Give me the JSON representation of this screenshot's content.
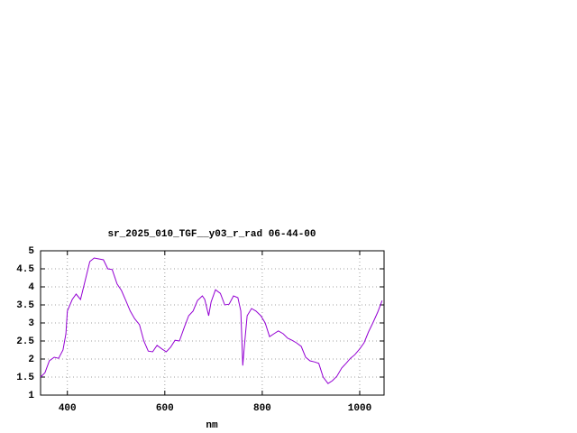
{
  "chart_data": {
    "type": "line",
    "title": "sr_2025_010_TGF__y03_r_rad 06-44-00",
    "x_label": "nm",
    "xlim": [
      345,
      1050
    ],
    "ylim": [
      1,
      5
    ],
    "xticks": [
      400,
      600,
      800,
      1000
    ],
    "yticks": [
      1,
      1.5,
      2,
      2.5,
      3,
      3.5,
      4,
      4.5,
      5
    ],
    "grid": true,
    "series": [
      {
        "color": "#9400d3",
        "x": [
          345,
          354,
          363,
          373,
          382,
          391,
          397,
          400,
          410,
          418,
          427,
          437,
          446,
          455,
          474,
          483,
          492,
          502,
          511,
          520,
          529,
          538,
          548,
          557,
          566,
          575,
          584,
          594,
          603,
          612,
          621,
          630,
          640,
          649,
          658,
          667,
          677,
          682,
          690,
          695,
          704,
          714,
          723,
          732,
          741,
          750,
          756,
          760,
          763,
          769,
          778,
          787,
          797,
          806,
          815,
          824,
          833,
          843,
          852,
          861,
          870,
          880,
          889,
          898,
          907,
          916,
          925,
          935,
          944,
          953,
          963,
          972,
          981,
          990,
          1000,
          1009,
          1018,
          1027,
          1037,
          1046
        ],
        "values": [
          1.5,
          1.62,
          1.95,
          2.05,
          2.02,
          2.25,
          2.7,
          3.33,
          3.65,
          3.8,
          3.65,
          4.2,
          4.7,
          4.8,
          4.75,
          4.5,
          4.48,
          4.08,
          3.9,
          3.62,
          3.33,
          3.12,
          2.95,
          2.5,
          2.22,
          2.2,
          2.38,
          2.28,
          2.2,
          2.33,
          2.52,
          2.5,
          2.88,
          3.2,
          3.33,
          3.62,
          3.75,
          3.65,
          3.2,
          3.58,
          3.92,
          3.82,
          3.5,
          3.52,
          3.75,
          3.7,
          3.33,
          1.82,
          2.32,
          3.2,
          3.4,
          3.33,
          3.2,
          3.0,
          2.62,
          2.7,
          2.78,
          2.7,
          2.58,
          2.52,
          2.45,
          2.35,
          2.05,
          1.95,
          1.92,
          1.88,
          1.5,
          1.32,
          1.4,
          1.52,
          1.75,
          1.88,
          2.02,
          2.12,
          2.28,
          2.45,
          2.75,
          3.0,
          3.3,
          3.62
        ]
      }
    ]
  }
}
